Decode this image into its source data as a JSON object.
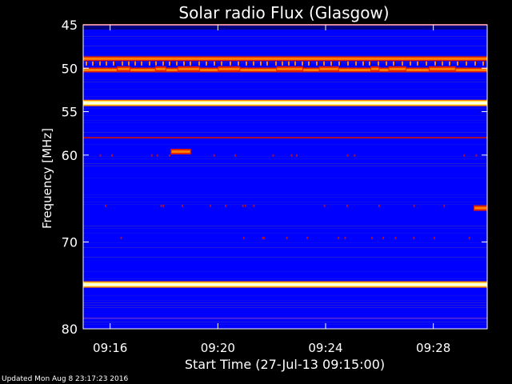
{
  "chart_data": {
    "type": "heatmap",
    "title": "Solar radio Flux (Glasgow)",
    "xlabel": "Start Time (27-Jul-13 09:15:00)",
    "ylabel": "Frequency [MHz]",
    "xlim": [
      "09:15:00",
      "09:30:00"
    ],
    "ylim": [
      45,
      80
    ],
    "y_axis_direction": "increasing downward",
    "x_ticks": [
      "09:16",
      "09:20",
      "09:24",
      "09:28"
    ],
    "y_ticks": [
      45,
      50,
      55,
      60,
      70,
      80
    ],
    "colormap": [
      "#000080",
      "#0000ff",
      "#2a1fd0",
      "#b01030",
      "#e02000",
      "#ff8000",
      "#ffff80",
      "#ffffff"
    ],
    "background_level": "low (blue)",
    "continuous_bands_mhz": [
      {
        "freq": 45.0,
        "intensity": "medium (red)"
      },
      {
        "freq": 48.9,
        "intensity": "high (orange)"
      },
      {
        "freq": 50.2,
        "intensity": "high (orange, intermittent bursts)"
      },
      {
        "freq": 54.0,
        "intensity": "saturated (white/yellow)"
      },
      {
        "freq": 58.0,
        "intensity": "medium (red)"
      },
      {
        "freq": 74.9,
        "intensity": "saturated (white/yellow)"
      },
      {
        "freq": 78.8,
        "intensity": "low (violet)"
      }
    ],
    "burst_segments": [
      {
        "freq": 50.1,
        "start": "09:16:15",
        "end": "09:16:45"
      },
      {
        "freq": 50.1,
        "start": "09:17:40",
        "end": "09:18:05"
      },
      {
        "freq": 50.1,
        "start": "09:18:30",
        "end": "09:19:20"
      },
      {
        "freq": 50.1,
        "start": "09:20:00",
        "end": "09:20:50"
      },
      {
        "freq": 50.1,
        "start": "09:22:10",
        "end": "09:23:10"
      },
      {
        "freq": 50.1,
        "start": "09:23:45",
        "end": "09:24:30"
      },
      {
        "freq": 50.1,
        "start": "09:25:40",
        "end": "09:26:00"
      },
      {
        "freq": 50.1,
        "start": "09:26:20",
        "end": "09:27:00"
      },
      {
        "freq": 50.1,
        "start": "09:27:50",
        "end": "09:28:50"
      },
      {
        "freq": 59.6,
        "start": "09:18:15",
        "end": "09:19:00"
      },
      {
        "freq": 66.1,
        "start": "09:29:30",
        "end": "09:30:00"
      }
    ]
  },
  "footer": {
    "updated": "Updated Mon Aug  8 23:17:23 2016"
  }
}
